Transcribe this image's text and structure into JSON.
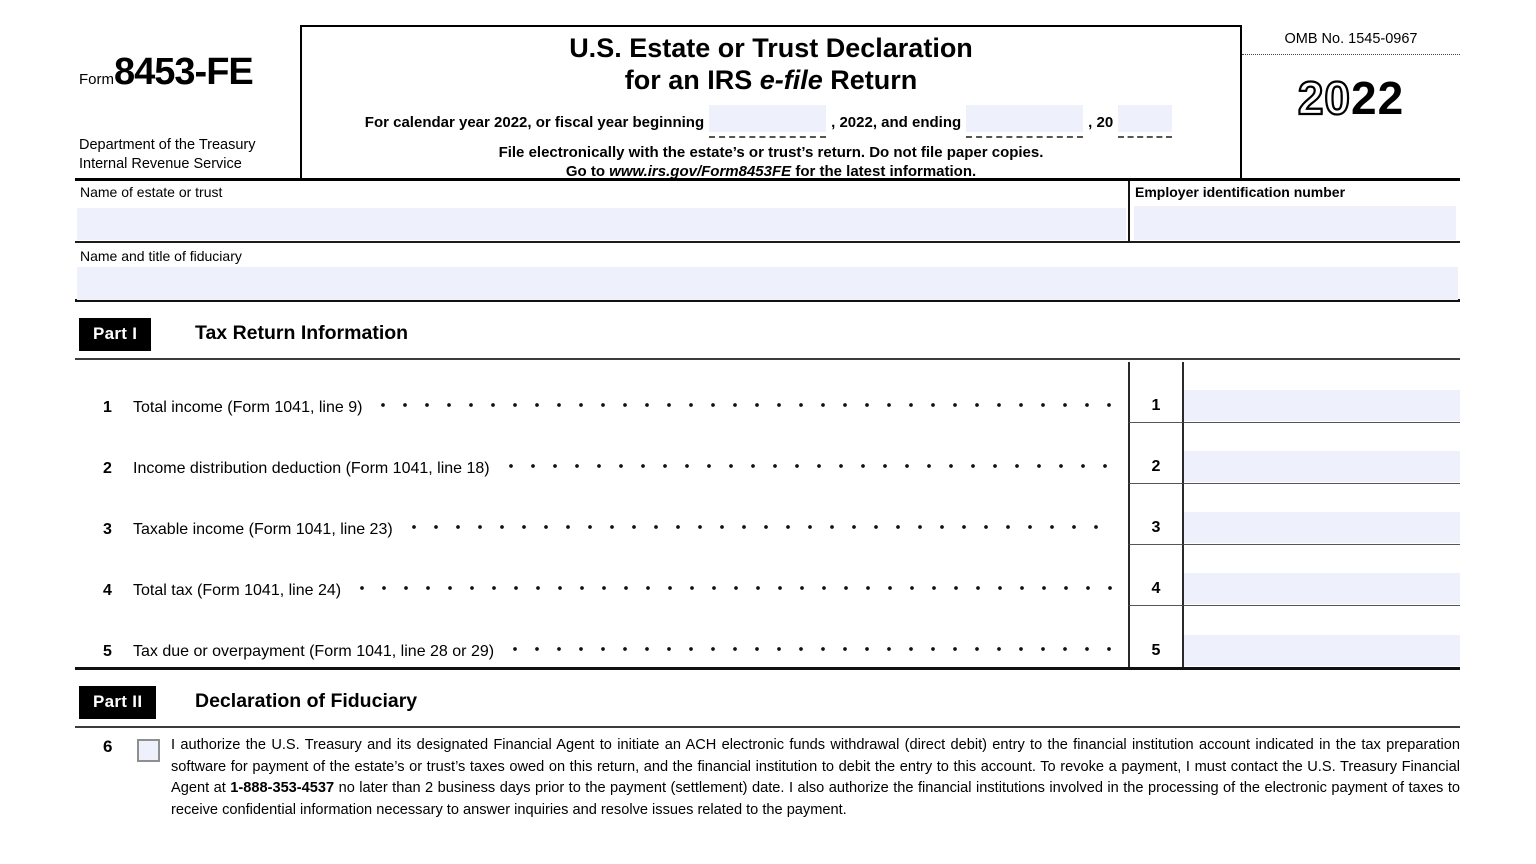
{
  "header": {
    "form_word": "Form",
    "form_number": "8453-FE",
    "agency_line1": "Department of the Treasury",
    "agency_line2": "Internal Revenue Service",
    "title_line1": "U.S. Estate or Trust Declaration",
    "title_line2_pre": "for an IRS ",
    "title_line2_efile": "e-file",
    "title_line2_post": " Return",
    "fiscal_pre": "For calendar year 2022, or fiscal year beginning",
    "fiscal_mid": ", 2022, and ending",
    "fiscal_end": ", 20",
    "fiscal_begin_value": "",
    "fiscal_ending_value": "",
    "fiscal_year_suffix_value": "",
    "instruction_line": "File electronically with the estate’s or trust’s return. Do not file paper copies.",
    "goto_pre": "Go to ",
    "goto_url": "www.irs.gov/Form8453FE",
    "goto_post": " for the latest information.",
    "omb": "OMB No. 1545-0967",
    "year_outline": "20",
    "year_bold": "22"
  },
  "identity": {
    "name_label": "Name of estate or trust",
    "name_value": "",
    "ein_label": "Employer identification number",
    "ein_value": "",
    "fiduciary_label": "Name and title of fiduciary",
    "fiduciary_value": ""
  },
  "part1": {
    "badge": "Part I",
    "title": "Tax Return Information",
    "rows": [
      {
        "num": "1",
        "label": "Total income (Form 1041, line 9)",
        "value": ""
      },
      {
        "num": "2",
        "label": "Income distribution deduction (Form 1041, line 18)",
        "value": ""
      },
      {
        "num": "3",
        "label": "Taxable income (Form 1041, line 23)",
        "value": ""
      },
      {
        "num": "4",
        "label": "Total tax (Form 1041, line 24)",
        "value": ""
      },
      {
        "num": "5",
        "label": "Tax due or overpayment (Form 1041, line 28 or 29)",
        "value": ""
      }
    ]
  },
  "part2": {
    "badge": "Part II",
    "title": "Declaration of Fiduciary",
    "item_number": "6",
    "checkbox_checked": false,
    "declaration_pre": "I authorize the U.S. Treasury and its designated Financial Agent to initiate an ACH electronic funds withdrawal (direct debit) entry to the financial institution account indicated in the tax preparation software for payment of the estate’s or trust’s taxes owed on this return, and the financial institution to debit the entry to this account. To revoke a payment, I must contact the U.S. Treasury Financial Agent at ",
    "declaration_phone": "1-888-353-4537",
    "declaration_post": " no later than 2 business days prior to the payment (settlement) date. I also authorize the financial institutions involved in the processing of the electronic payment of taxes to receive confidential information necessary to answer inquiries and resolve issues related to the payment."
  },
  "colors": {
    "field_bg": "#eef0fb",
    "badge_bg": "#000000",
    "badge_fg": "#ffffff"
  }
}
